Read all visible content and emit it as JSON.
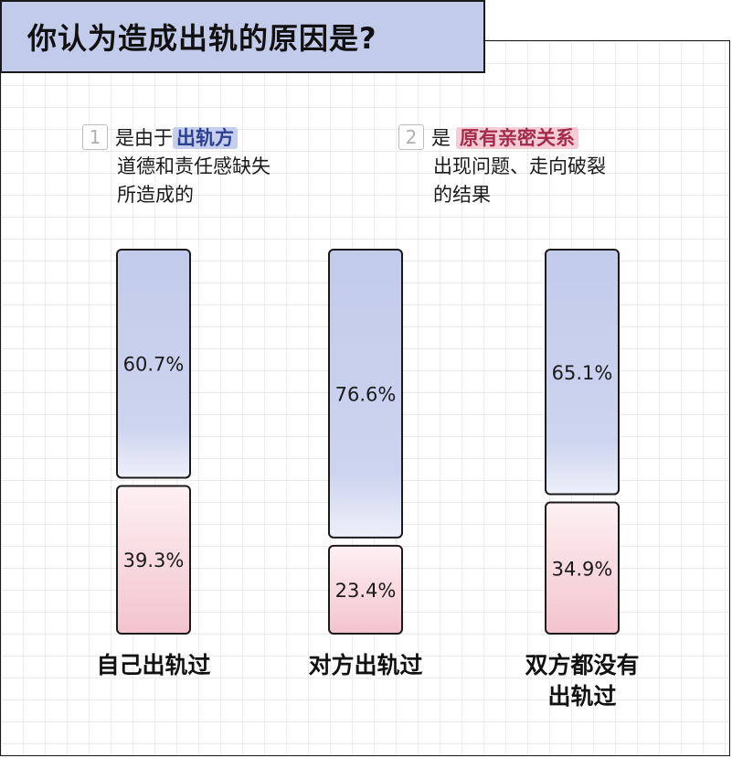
{
  "title": "你认为造成出轨的原因是?",
  "reasons": [
    {
      "num": "1",
      "prefix": "是由于",
      "highlight": "出轨方",
      "line2": "道德和责任感缺失",
      "line3": "所造成的"
    },
    {
      "num": "2",
      "prefix": "是",
      "highlight": "原有亲密关系",
      "line2": "出现问题、走向破裂",
      "line3": "的结果"
    }
  ],
  "colors": {
    "reason1": "#c3cbeb",
    "reason2": "#f5c9d3"
  },
  "chart_data": {
    "type": "bar",
    "stacked": true,
    "normalized": true,
    "categories": [
      "自己出轨过",
      "对方出轨过",
      "双方都没有出轨过"
    ],
    "series": [
      {
        "key": "reason1",
        "values": [
          60.7,
          76.6,
          65.1
        ],
        "labels": [
          "60.7%",
          "76.6%",
          "65.1%"
        ]
      },
      {
        "key": "reason2",
        "values": [
          39.3,
          23.4,
          34.9
        ],
        "labels": [
          "39.3%",
          "23.4%",
          "34.9%"
        ]
      }
    ],
    "ylim": [
      0,
      100
    ],
    "category_labels": [
      [
        "自己出轨过"
      ],
      [
        "对方出轨过"
      ],
      [
        "双方都没有",
        "出轨过"
      ]
    ]
  }
}
